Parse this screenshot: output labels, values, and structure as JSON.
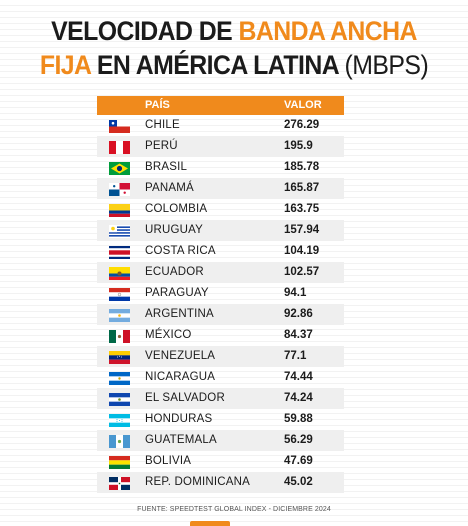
{
  "title": {
    "line1_a": "VELOCIDAD DE ",
    "line1_b": "BANDA ANCHA",
    "line2_a": "FIJA",
    "line2_b": " EN AMÉRICA LATINA ",
    "line2_c": "(MBPS)"
  },
  "table_header": {
    "country": "PAÍS",
    "value": "VALOR"
  },
  "colors": {
    "accent": "#f08a1c",
    "text": "#1b1b1b",
    "row_alt": "#efefef"
  },
  "chart_data": {
    "type": "table",
    "title": "VELOCIDAD DE BANDA ANCHA FIJA EN AMÉRICA LATINA (MBPS)",
    "columns": [
      "PAÍS",
      "VALOR"
    ],
    "rows": [
      {
        "country": "CHILE",
        "value": "276.29",
        "flag": "chile-flag"
      },
      {
        "country": "PERÚ",
        "value": "195.9",
        "flag": "peru-flag"
      },
      {
        "country": "BRASIL",
        "value": "185.78",
        "flag": "brazil-flag"
      },
      {
        "country": "PANAMÁ",
        "value": "165.87",
        "flag": "panama-flag"
      },
      {
        "country": "COLOMBIA",
        "value": "163.75",
        "flag": "colombia-flag"
      },
      {
        "country": "URUGUAY",
        "value": "157.94",
        "flag": "uruguay-flag"
      },
      {
        "country": "COSTA RICA",
        "value": "104.19",
        "flag": "costa-rica-flag"
      },
      {
        "country": "ECUADOR",
        "value": "102.57",
        "flag": "ecuador-flag"
      },
      {
        "country": "PARAGUAY",
        "value": "94.1",
        "flag": "paraguay-flag"
      },
      {
        "country": "ARGENTINA",
        "value": "92.86",
        "flag": "argentina-flag"
      },
      {
        "country": "MÉXICO",
        "value": "84.37",
        "flag": "mexico-flag"
      },
      {
        "country": "VENEZUELA",
        "value": "77.1",
        "flag": "venezuela-flag"
      },
      {
        "country": "NICARAGUA",
        "value": "74.44",
        "flag": "nicaragua-flag"
      },
      {
        "country": "EL SALVADOR",
        "value": "74.24",
        "flag": "el-salvador-flag"
      },
      {
        "country": "HONDURAS",
        "value": "59.88",
        "flag": "honduras-flag"
      },
      {
        "country": "GUATEMALA",
        "value": "56.29",
        "flag": "guatemala-flag"
      },
      {
        "country": "BOLIVIA",
        "value": "47.69",
        "flag": "bolivia-flag"
      },
      {
        "country": "REP. DOMINICANA",
        "value": "45.02",
        "flag": "dominican-republic-flag"
      }
    ]
  },
  "source": "FUENTE: SPEEDTEST GLOBAL INDEX - DICIEMBRE 2024"
}
